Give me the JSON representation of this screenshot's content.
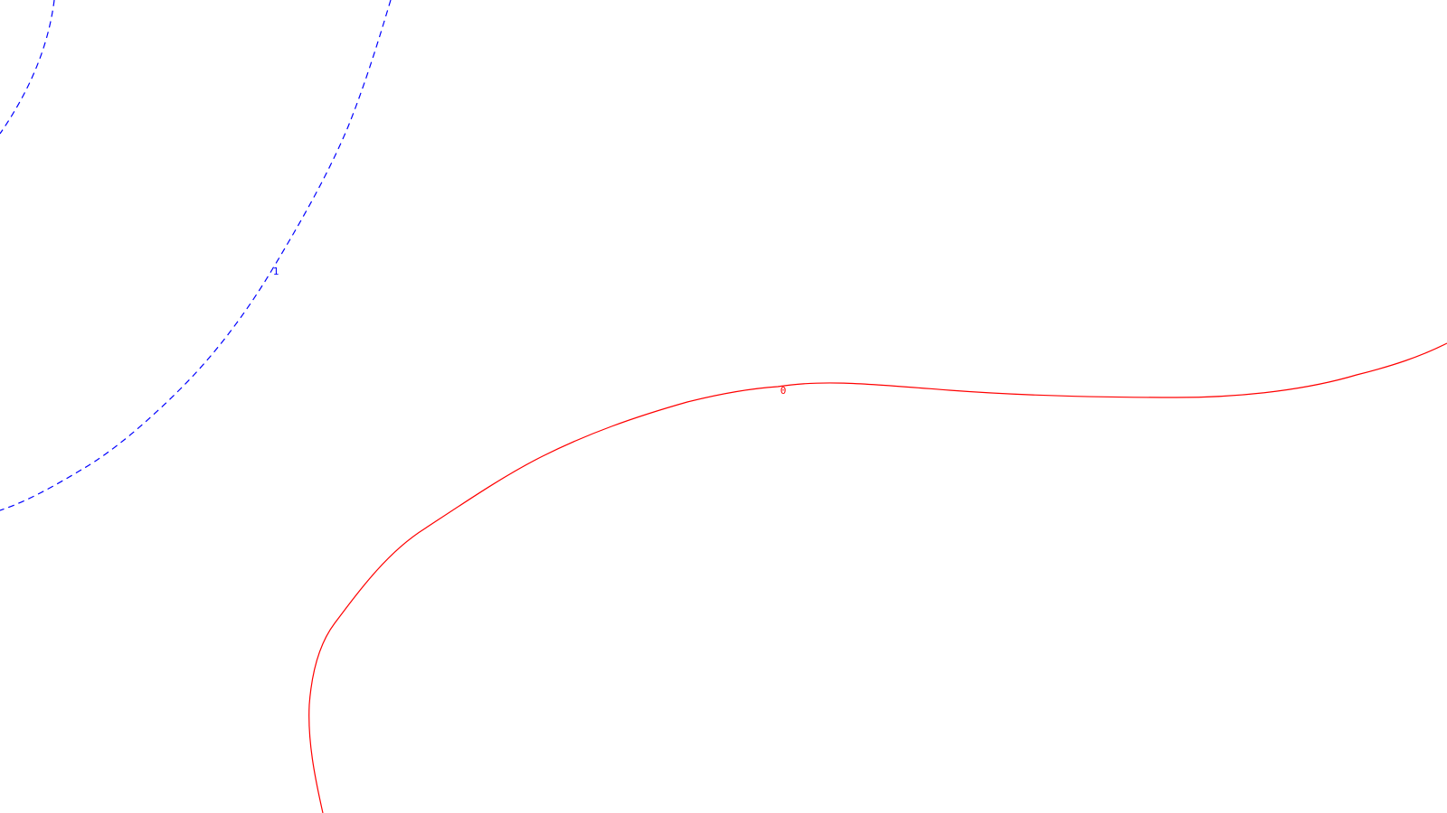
{
  "contours": [
    {
      "label": "1",
      "color": "#0000ff",
      "style": "dashed"
    },
    {
      "label": "0",
      "color": "#ff0000",
      "style": "solid"
    }
  ]
}
